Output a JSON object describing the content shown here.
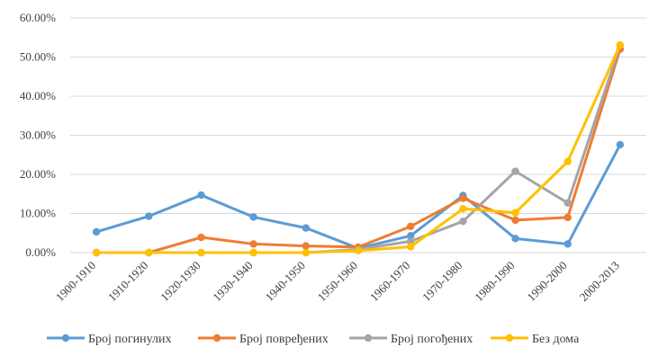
{
  "chart_data": {
    "type": "line",
    "categories": [
      "1900-1910",
      "1910-1920",
      "1920-1930",
      "1930-1940",
      "1940-1950",
      "1950-1960",
      "1960-1970",
      "1970-1980",
      "1980-1990",
      "1990-2000",
      "2000-2013"
    ],
    "ylim": [
      0,
      60
    ],
    "yticks": [
      "0.00%",
      "10.00%",
      "20.00%",
      "30.00%",
      "40.00%",
      "50.00%",
      "60.00%"
    ],
    "grid": true,
    "legend_position": "bottom",
    "series": [
      {
        "name": "Број погинулих",
        "color": "#5b9bd5",
        "values": [
          5.3,
          9.3,
          14.7,
          9.1,
          6.3,
          1.1,
          4.3,
          14.6,
          3.6,
          2.2,
          27.6
        ]
      },
      {
        "name": "Број повређених",
        "color": "#ed7d31",
        "values": [
          0.0,
          0.0,
          3.9,
          2.2,
          1.7,
          1.4,
          6.7,
          13.9,
          8.3,
          9.0,
          52.0
        ]
      },
      {
        "name": "Број погођених",
        "color": "#a5a5a5",
        "values": [
          0.0,
          0.0,
          0.0,
          0.0,
          0.0,
          0.8,
          2.9,
          8.0,
          20.8,
          12.7,
          53.0
        ]
      },
      {
        "name": "Без дома",
        "color": "#ffc000",
        "values": [
          0.0,
          0.0,
          0.0,
          0.0,
          0.0,
          0.5,
          1.5,
          11.2,
          10.2,
          23.3,
          53.1
        ]
      }
    ]
  }
}
